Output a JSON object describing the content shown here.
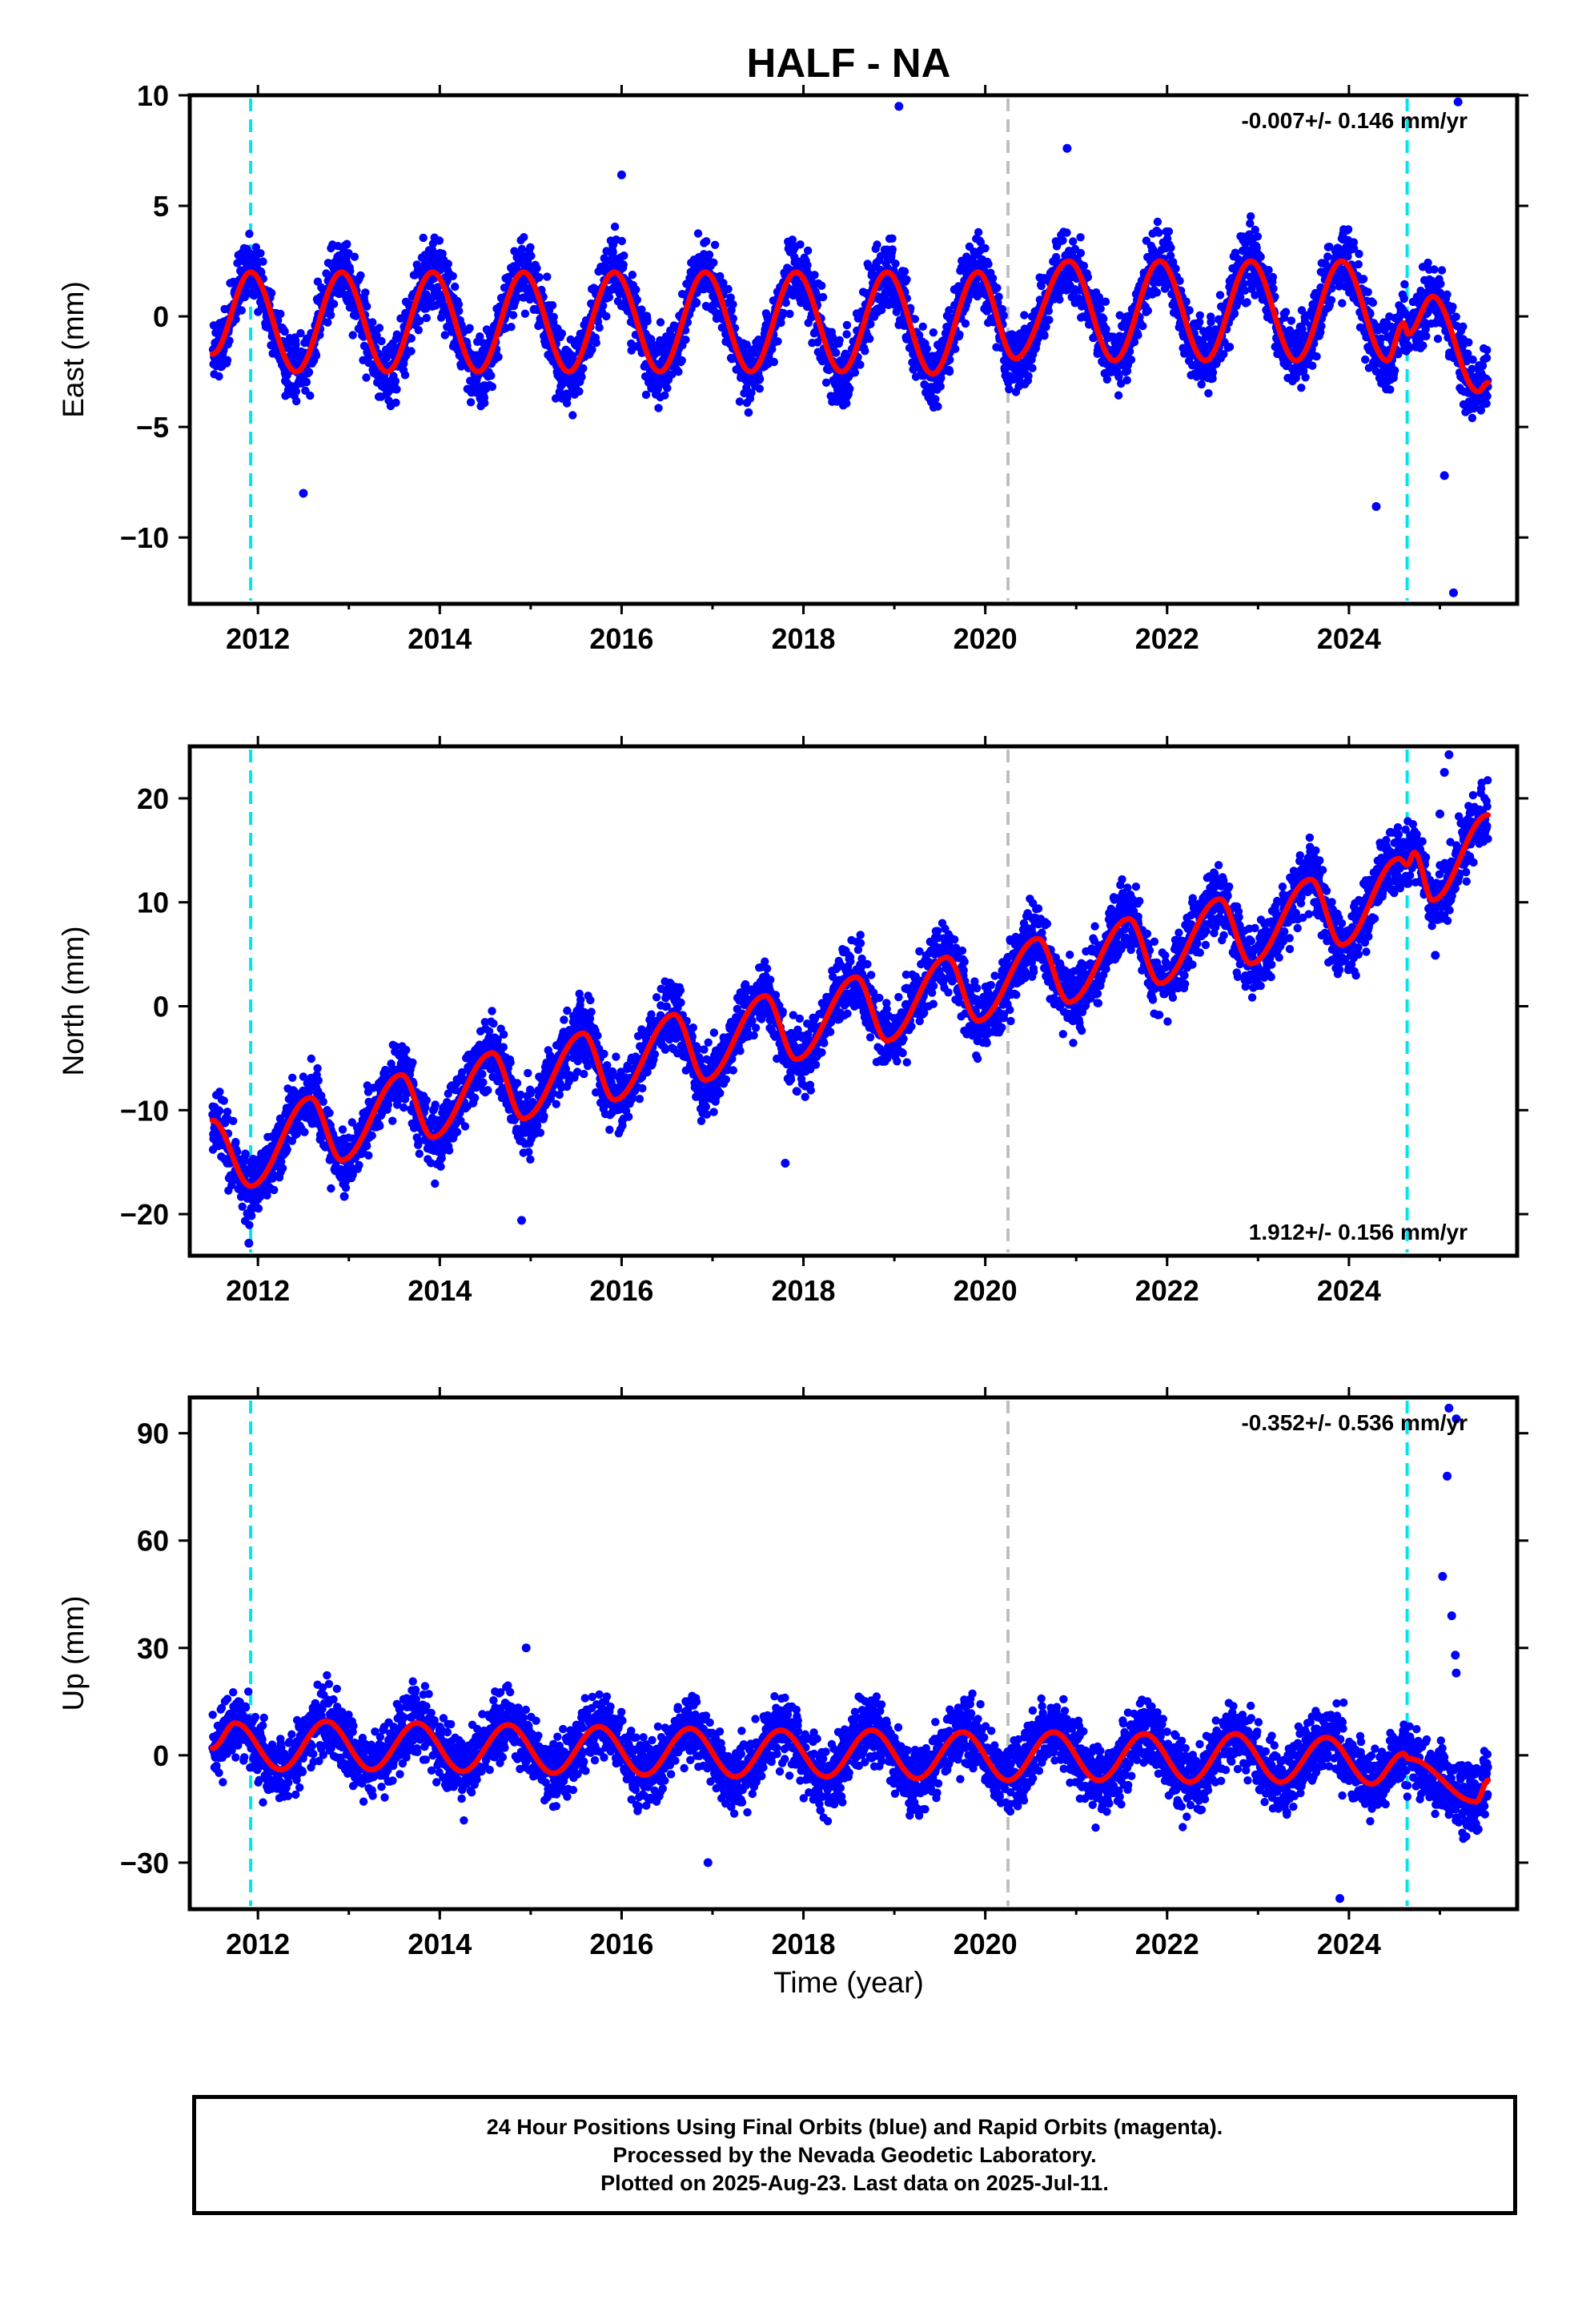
{
  "title": "HALF - NA",
  "colors": {
    "data_points": "#0000ff",
    "model": "#ff0000",
    "equipment_change": "#00e5ee",
    "other_event": "#bfbfbf"
  },
  "x_axis_label": "Time (year)",
  "chart_data": [
    {
      "type": "scatter",
      "component": "east",
      "ylabel": "East (mm)",
      "rate_text": "-0.007+/- 0.146 mm/yr",
      "rate_position": "top-right",
      "xlim": [
        2011.25,
        2025.85
      ],
      "ylim": [
        -13,
        10
      ],
      "x_ticks": [
        2012,
        2014,
        2016,
        2018,
        2020,
        2022,
        2024
      ],
      "x_tick_labels": [
        "2012",
        "2014",
        "2016",
        "2018",
        "2020",
        "2022",
        "2024"
      ],
      "y_ticks": [
        10,
        5,
        0,
        -5,
        -10
      ],
      "y_tick_labels": [
        "10",
        "5",
        "0",
        "−5",
        "−10"
      ],
      "data_start": 2011.5,
      "data_end": 2025.53,
      "trend_mm_per_yr": -0.007,
      "series": [
        {
          "name": "Final Orbits (blue)",
          "style": "points",
          "x": [
            2011.6,
            2012.0,
            2012.5,
            2013.0,
            2013.5,
            2014.0,
            2014.5,
            2015.0,
            2015.5,
            2016.0,
            2016.5,
            2017.0,
            2017.5,
            2018.0,
            2018.5,
            2019.0,
            2019.5,
            2020.0,
            2020.5,
            2021.0,
            2021.5,
            2022.0,
            2022.5,
            2023.0,
            2023.5,
            2024.0,
            2024.5,
            2025.0,
            2025.5
          ],
          "y": [
            -1.5,
            2.0,
            -2.5,
            2.0,
            -2.5,
            2.0,
            -2.5,
            2.0,
            -2.5,
            2.0,
            -2.5,
            2.0,
            -2.5,
            2.0,
            -2.5,
            2.0,
            -2.5,
            2.0,
            -2.0,
            2.5,
            -2.0,
            2.5,
            -2.0,
            2.5,
            -2.0,
            2.5,
            -2.0,
            1.0,
            -3.0
          ]
        },
        {
          "name": "Model",
          "style": "line",
          "x": [
            2011.5,
            2011.92,
            2012.42,
            2012.92,
            2013.42,
            2013.92,
            2014.42,
            2014.92,
            2015.42,
            2015.92,
            2016.42,
            2016.92,
            2017.42,
            2017.92,
            2018.42,
            2018.92,
            2019.42,
            2019.92,
            2020.33,
            2020.92,
            2021.42,
            2021.92,
            2022.42,
            2022.92,
            2023.42,
            2023.92,
            2024.42,
            2024.6,
            2024.65,
            2024.92,
            2025.42,
            2025.53
          ],
          "y": [
            -1.7,
            2.0,
            -2.5,
            2.0,
            -2.5,
            2.0,
            -2.5,
            2.0,
            -2.5,
            2.0,
            -2.5,
            2.0,
            -2.5,
            2.0,
            -2.5,
            2.0,
            -2.6,
            2.0,
            -1.9,
            2.5,
            -2.0,
            2.5,
            -2.0,
            2.5,
            -2.0,
            2.5,
            -2.0,
            -0.3,
            -0.8,
            0.9,
            -3.4,
            -3.0
          ]
        }
      ],
      "outliers": [
        [
          2019.05,
          9.5
        ],
        [
          2025.15,
          -12.5
        ],
        [
          2024.3,
          -8.6
        ],
        [
          2012.5,
          -8.0
        ],
        [
          2025.05,
          -7.2
        ],
        [
          2025.2,
          9.7
        ],
        [
          2020.9,
          7.6
        ],
        [
          2016.0,
          6.4
        ]
      ],
      "vlines": [
        {
          "x": 2011.92,
          "color": "cyan"
        },
        {
          "x": 2020.25,
          "color": "gray"
        },
        {
          "x": 2024.64,
          "color": "cyan"
        }
      ]
    },
    {
      "type": "scatter",
      "component": "north",
      "ylabel": "North (mm)",
      "rate_text": "1.912+/- 0.156 mm/yr",
      "rate_position": "bottom-right",
      "xlim": [
        2011.25,
        2025.85
      ],
      "ylim": [
        -24,
        25
      ],
      "x_ticks": [
        2012,
        2014,
        2016,
        2018,
        2020,
        2022,
        2024
      ],
      "x_tick_labels": [
        "2012",
        "2014",
        "2016",
        "2018",
        "2020",
        "2022",
        "2024"
      ],
      "y_ticks": [
        20,
        10,
        0,
        -10,
        -20
      ],
      "y_tick_labels": [
        "20",
        "10",
        "0",
        "−10",
        "−20"
      ],
      "data_start": 2011.5,
      "data_end": 2025.53,
      "trend_mm_per_yr": 1.912,
      "series": [
        {
          "name": "Final Orbits (blue)",
          "style": "points",
          "x": [
            2011.5,
            2011.9,
            2012.5,
            2012.9,
            2013.5,
            2013.9,
            2014.5,
            2014.9,
            2015.5,
            2015.9,
            2016.5,
            2016.9,
            2017.5,
            2017.9,
            2018.5,
            2018.9,
            2019.5,
            2019.9,
            2020.5,
            2020.9,
            2021.5,
            2021.9,
            2022.5,
            2022.9,
            2023.5,
            2023.9,
            2024.6,
            2024.9,
            2025.5
          ],
          "y": [
            -11,
            -17,
            -9,
            -15,
            -6.5,
            -12.5,
            -4.5,
            -11,
            -2.5,
            -9,
            -1,
            -7,
            1,
            -5,
            3,
            -3,
            5,
            -1.5,
            6.5,
            0.5,
            8.5,
            2,
            10.5,
            4,
            12,
            6,
            14.5,
            10.5,
            18
          ]
        },
        {
          "name": "Model",
          "style": "line",
          "x": [
            2011.5,
            2011.92,
            2012.58,
            2012.92,
            2013.58,
            2013.92,
            2014.58,
            2014.92,
            2015.58,
            2015.92,
            2016.58,
            2016.92,
            2017.58,
            2017.92,
            2018.58,
            2018.92,
            2019.58,
            2019.92,
            2020.58,
            2020.92,
            2021.58,
            2021.92,
            2022.58,
            2022.92,
            2023.58,
            2023.92,
            2024.55,
            2024.64,
            2024.72,
            2024.92,
            2025.53
          ],
          "y": [
            -11,
            -17.3,
            -8.8,
            -14.8,
            -6.6,
            -12.6,
            -4.5,
            -10.8,
            -2.6,
            -9.0,
            -0.8,
            -7.1,
            1.0,
            -5.1,
            2.8,
            -3.3,
            4.7,
            -1.4,
            6.5,
            0.4,
            8.4,
            2.2,
            10.3,
            4.1,
            12.2,
            5.9,
            14.2,
            13.6,
            14.8,
            10.2,
            18.4
          ]
        }
      ],
      "outliers": [
        [
          2025.1,
          24.2
        ],
        [
          2025.05,
          22.5
        ],
        [
          2025.0,
          18.5
        ],
        [
          2024.95,
          4.9
        ],
        [
          2011.9,
          -22.8
        ],
        [
          2014.9,
          -20.6
        ],
        [
          2017.8,
          -15.1
        ],
        [
          2012.95,
          -18.3
        ]
      ],
      "vlines": [
        {
          "x": 2011.92,
          "color": "cyan"
        },
        {
          "x": 2020.25,
          "color": "gray"
        },
        {
          "x": 2024.64,
          "color": "cyan"
        }
      ]
    },
    {
      "type": "scatter",
      "component": "up",
      "ylabel": "Up (mm)",
      "rate_text": "-0.352+/- 0.536 mm/yr",
      "rate_position": "top-right",
      "xlim": [
        2011.25,
        2025.85
      ],
      "ylim": [
        -43,
        100
      ],
      "x_ticks": [
        2012,
        2014,
        2016,
        2018,
        2020,
        2022,
        2024
      ],
      "x_tick_labels": [
        "2012",
        "2014",
        "2016",
        "2018",
        "2020",
        "2022",
        "2024"
      ],
      "y_ticks": [
        90,
        60,
        30,
        0,
        -30
      ],
      "y_tick_labels": [
        "90",
        "60",
        "30",
        "0",
        "−30"
      ],
      "data_start": 2011.5,
      "data_end": 2025.53,
      "trend_mm_per_yr": -0.352,
      "series": [
        {
          "name": "Final Orbits (blue)",
          "style": "points",
          "x": [
            2011.7,
            2012.2,
            2012.7,
            2013.2,
            2013.7,
            2014.2,
            2014.7,
            2015.2,
            2015.7,
            2016.2,
            2016.7,
            2017.2,
            2017.7,
            2018.2,
            2018.7,
            2019.2,
            2019.7,
            2020.2,
            2020.7,
            2021.2,
            2021.7,
            2022.2,
            2022.7,
            2023.2,
            2023.7,
            2024.2,
            2024.7,
            2025.2,
            2025.5
          ],
          "y": [
            9,
            -4,
            10,
            -4,
            9,
            -4,
            9,
            -5,
            8,
            -5,
            8,
            -6,
            7,
            -6,
            7,
            -6,
            6,
            -7,
            6,
            -7,
            6,
            -7,
            5,
            -7,
            5,
            -8,
            1,
            -12,
            -6
          ]
        },
        {
          "name": "Model",
          "style": "line",
          "x": [
            2011.5,
            2011.75,
            2012.25,
            2012.75,
            2013.25,
            2013.75,
            2014.25,
            2014.75,
            2015.25,
            2015.75,
            2016.25,
            2016.75,
            2017.25,
            2017.75,
            2018.25,
            2018.75,
            2019.25,
            2019.75,
            2020.25,
            2020.75,
            2021.25,
            2021.75,
            2022.25,
            2022.75,
            2023.25,
            2023.75,
            2024.25,
            2024.6,
            2024.66,
            2025.4,
            2025.53
          ],
          "y": [
            2,
            9,
            -4,
            9.5,
            -4,
            9,
            -4.5,
            8.5,
            -5,
            8,
            -5.5,
            7.5,
            -6,
            7,
            -6,
            7,
            -6.5,
            6.5,
            -7,
            6.5,
            -7,
            6,
            -7.5,
            6,
            -7.5,
            5,
            -8,
            0.5,
            -1,
            -13,
            -7
          ]
        }
      ],
      "outliers": [
        [
          2025.1,
          97
        ],
        [
          2025.18,
          94
        ],
        [
          2025.08,
          78
        ],
        [
          2025.03,
          50
        ],
        [
          2025.13,
          39
        ],
        [
          2025.17,
          28
        ],
        [
          2025.18,
          23
        ],
        [
          2023.9,
          -40
        ],
        [
          2016.95,
          -30
        ],
        [
          2014.95,
          30
        ]
      ],
      "vlines": [
        {
          "x": 2011.92,
          "color": "cyan"
        },
        {
          "x": 2020.25,
          "color": "gray"
        },
        {
          "x": 2024.64,
          "color": "cyan"
        }
      ]
    }
  ],
  "footer": {
    "line1": "24 Hour Positions Using Final Orbits (blue) and Rapid Orbits (magenta).",
    "line2": "Processed by the Nevada Geodetic Laboratory.",
    "line3": "Plotted on 2025-Aug-23. Last data on 2025-Jul-11."
  }
}
